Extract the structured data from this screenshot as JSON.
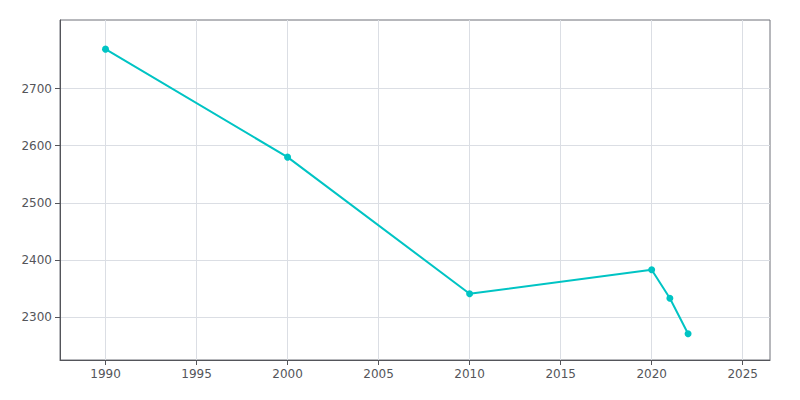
{
  "chart_data": {
    "type": "line",
    "x": [
      1990,
      2000,
      2010,
      2020,
      2021,
      2022
    ],
    "values": [
      2769,
      2580,
      2341,
      2383,
      2333,
      2271
    ],
    "color": "#00C4C4",
    "marker": "circle",
    "xlim": [
      1987.5,
      2026.5
    ],
    "ylim": [
      2225,
      2820
    ],
    "xticks": [
      1990,
      1995,
      2000,
      2005,
      2010,
      2015,
      2020,
      2025
    ],
    "yticks": [
      2300,
      2400,
      2500,
      2600,
      2700
    ],
    "grid": true
  }
}
